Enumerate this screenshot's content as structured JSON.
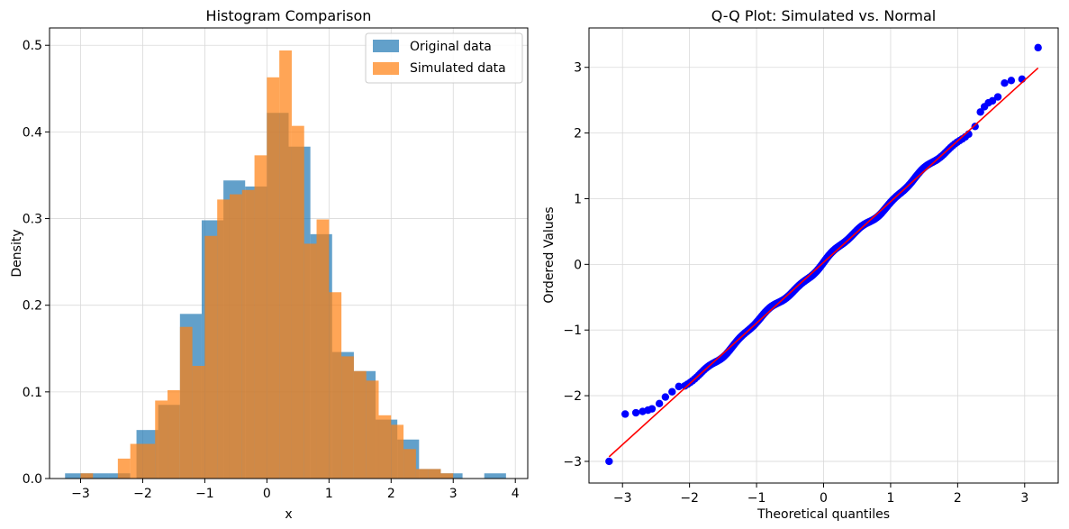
{
  "colors": {
    "original": "#1f77b4",
    "simulated": "#ff7f0e",
    "qq_points": "#0000ff",
    "qq_line": "#ff0000",
    "grid": "#d9d9d9"
  },
  "chart_data": [
    {
      "type": "histogram",
      "title": "Histogram Comparison",
      "xlabel": "x",
      "ylabel": "Density",
      "xlim": [
        -3.5,
        4.2
      ],
      "ylim": [
        0,
        0.52
      ],
      "xticks": [
        -3,
        -2,
        -1,
        0,
        1,
        2,
        3,
        4
      ],
      "yticks": [
        0.0,
        0.1,
        0.2,
        0.3,
        0.4,
        0.5
      ],
      "xtick_labels": [
        "−3",
        "−2",
        "−1",
        "0",
        "1",
        "2",
        "3",
        "4"
      ],
      "ytick_labels": [
        "0.0",
        "0.1",
        "0.2",
        "0.3",
        "0.4",
        "0.5"
      ],
      "grid": true,
      "legend_position": "top-right",
      "series": [
        {
          "name": "Original data",
          "alpha": 0.7,
          "bins": [
            {
              "x0": -3.25,
              "x1": -2.9,
              "density": 0.006
            },
            {
              "x0": -2.9,
              "x1": -2.55,
              "density": 0.006
            },
            {
              "x0": -2.55,
              "x1": -2.2,
              "density": 0.006
            },
            {
              "x0": -2.2,
              "x1": -2.1,
              "density": 0.0
            },
            {
              "x0": -2.1,
              "x1": -1.75,
              "density": 0.056
            },
            {
              "x0": -1.75,
              "x1": -1.4,
              "density": 0.085
            },
            {
              "x0": -1.4,
              "x1": -1.05,
              "density": 0.19
            },
            {
              "x0": -1.05,
              "x1": -0.7,
              "density": 0.298
            },
            {
              "x0": -0.7,
              "x1": -0.35,
              "density": 0.344
            },
            {
              "x0": -0.35,
              "x1": 0.0,
              "density": 0.337
            },
            {
              "x0": 0.0,
              "x1": 0.35,
              "density": 0.422
            },
            {
              "x0": 0.35,
              "x1": 0.7,
              "density": 0.383
            },
            {
              "x0": 0.7,
              "x1": 1.05,
              "density": 0.282
            },
            {
              "x0": 1.05,
              "x1": 1.4,
              "density": 0.146
            },
            {
              "x0": 1.4,
              "x1": 1.75,
              "density": 0.124
            },
            {
              "x0": 1.75,
              "x1": 2.1,
              "density": 0.068
            },
            {
              "x0": 2.1,
              "x1": 2.45,
              "density": 0.045
            },
            {
              "x0": 2.45,
              "x1": 2.8,
              "density": 0.011
            },
            {
              "x0": 2.8,
              "x1": 3.15,
              "density": 0.006
            },
            {
              "x0": 3.5,
              "x1": 3.85,
              "density": 0.006
            }
          ]
        },
        {
          "name": "Simulated data",
          "alpha": 0.7,
          "bins": [
            {
              "x0": -3.0,
              "x1": -2.8,
              "density": 0.006
            },
            {
              "x0": -2.4,
              "x1": -2.2,
              "density": 0.023
            },
            {
              "x0": -2.2,
              "x1": -2.0,
              "density": 0.04
            },
            {
              "x0": -2.0,
              "x1": -1.8,
              "density": 0.04
            },
            {
              "x0": -1.8,
              "x1": -1.6,
              "density": 0.09
            },
            {
              "x0": -1.6,
              "x1": -1.4,
              "density": 0.102
            },
            {
              "x0": -1.4,
              "x1": -1.2,
              "density": 0.175
            },
            {
              "x0": -1.2,
              "x1": -1.0,
              "density": 0.13
            },
            {
              "x0": -1.0,
              "x1": -0.8,
              "density": 0.28
            },
            {
              "x0": -0.8,
              "x1": -0.6,
              "density": 0.322
            },
            {
              "x0": -0.6,
              "x1": -0.4,
              "density": 0.328
            },
            {
              "x0": -0.4,
              "x1": -0.2,
              "density": 0.333
            },
            {
              "x0": -0.2,
              "x1": 0.0,
              "density": 0.373
            },
            {
              "x0": 0.0,
              "x1": 0.2,
              "density": 0.463
            },
            {
              "x0": 0.2,
              "x1": 0.4,
              "density": 0.494
            },
            {
              "x0": 0.4,
              "x1": 0.6,
              "density": 0.407
            },
            {
              "x0": 0.6,
              "x1": 0.8,
              "density": 0.271
            },
            {
              "x0": 0.8,
              "x1": 1.0,
              "density": 0.299
            },
            {
              "x0": 1.0,
              "x1": 1.2,
              "density": 0.215
            },
            {
              "x0": 1.2,
              "x1": 1.4,
              "density": 0.141
            },
            {
              "x0": 1.4,
              "x1": 1.6,
              "density": 0.124
            },
            {
              "x0": 1.6,
              "x1": 1.8,
              "density": 0.113
            },
            {
              "x0": 1.8,
              "x1": 2.0,
              "density": 0.073
            },
            {
              "x0": 2.0,
              "x1": 2.2,
              "density": 0.062
            },
            {
              "x0": 2.2,
              "x1": 2.4,
              "density": 0.034
            },
            {
              "x0": 2.4,
              "x1": 2.6,
              "density": 0.011
            },
            {
              "x0": 2.6,
              "x1": 2.8,
              "density": 0.011
            },
            {
              "x0": 2.8,
              "x1": 3.0,
              "density": 0.006
            }
          ]
        }
      ]
    },
    {
      "type": "scatter",
      "title": "Q-Q Plot: Simulated vs. Normal",
      "xlabel": "Theoretical quantiles",
      "ylabel": "Ordered Values",
      "xlim": [
        -3.5,
        3.5
      ],
      "ylim": [
        -3.33,
        3.6
      ],
      "xticks": [
        -3,
        -2,
        -1,
        0,
        1,
        2,
        3
      ],
      "yticks": [
        -3,
        -2,
        -1,
        0,
        1,
        2,
        3
      ],
      "xtick_labels": [
        "−3",
        "−2",
        "−1",
        "0",
        "1",
        "2",
        "3"
      ],
      "ytick_labels": [
        "−3",
        "−2",
        "−1",
        "0",
        "1",
        "2",
        "3"
      ],
      "grid": true,
      "fit_line": {
        "x": [
          -3.2,
          3.2
        ],
        "y": [
          -2.93,
          2.99
        ]
      },
      "slope": 0.926,
      "intercept": 0.03,
      "n_points": 500,
      "outliers": [
        {
          "x": -3.2,
          "y": -3.0
        },
        {
          "x": -2.96,
          "y": -2.28
        },
        {
          "x": -2.8,
          "y": -2.26
        },
        {
          "x": -2.7,
          "y": -2.24
        },
        {
          "x": -2.62,
          "y": -2.22
        },
        {
          "x": -2.56,
          "y": -2.2
        },
        {
          "x": -2.45,
          "y": -2.12
        },
        {
          "x": -2.36,
          "y": -2.02
        },
        {
          "x": -2.26,
          "y": -1.94
        },
        {
          "x": -2.16,
          "y": -1.86
        },
        {
          "x": 2.26,
          "y": 2.1
        },
        {
          "x": 2.34,
          "y": 2.32
        },
        {
          "x": 2.4,
          "y": 2.4
        },
        {
          "x": 2.46,
          "y": 2.46
        },
        {
          "x": 2.52,
          "y": 2.49
        },
        {
          "x": 2.6,
          "y": 2.55
        },
        {
          "x": 2.7,
          "y": 2.76
        },
        {
          "x": 2.8,
          "y": 2.8
        },
        {
          "x": 2.96,
          "y": 2.82
        },
        {
          "x": 3.2,
          "y": 3.3
        }
      ]
    }
  ]
}
